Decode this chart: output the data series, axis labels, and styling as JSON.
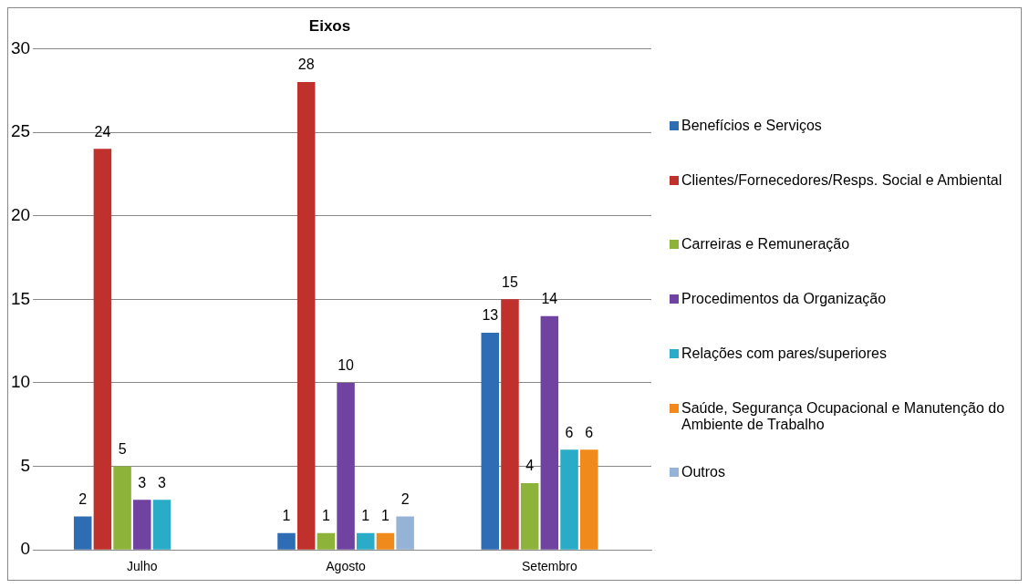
{
  "chart_data": {
    "type": "bar",
    "title": "Eixos",
    "categories": [
      "Julho",
      "Agosto",
      "Setembro"
    ],
    "series": [
      {
        "name": "Benefícios e Serviços",
        "color": "#2e6db4",
        "values": [
          2,
          1,
          13
        ]
      },
      {
        "name": "Clientes/Fornecedores/Resps. Social e Ambiental",
        "color": "#c0302c",
        "values": [
          24,
          28,
          15
        ]
      },
      {
        "name": "Carreiras e Remuneração",
        "color": "#8db33a",
        "values": [
          5,
          1,
          4
        ]
      },
      {
        "name": "Procedimentos da Organização",
        "color": "#7043a0",
        "values": [
          3,
          10,
          14
        ]
      },
      {
        "name": "Relações com pares/superiores",
        "color": "#2aabc8",
        "values": [
          3,
          1,
          6
        ]
      },
      {
        "name": "Saúde, Segurança Ocupacional e Manutenção do Ambiente de Trabalho",
        "color": "#f08a1c",
        "values": [
          null,
          1,
          6
        ]
      },
      {
        "name": "Outros",
        "color": "#95b3d7",
        "values": [
          null,
          2,
          null
        ]
      }
    ],
    "ylim": [
      0,
      30
    ],
    "yticks": [
      0,
      5,
      10,
      15,
      20,
      25,
      30
    ],
    "grid": "y",
    "legend": "right",
    "data_labels": true
  }
}
